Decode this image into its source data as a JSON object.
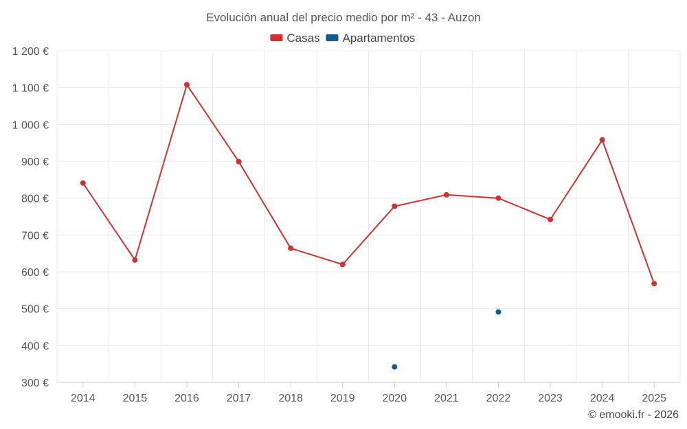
{
  "chart_data": {
    "type": "line",
    "title": "Evolución anual del precio medio por m² - 43 - Auzon",
    "categories": [
      "2014",
      "2015",
      "2016",
      "2017",
      "2018",
      "2019",
      "2020",
      "2021",
      "2022",
      "2023",
      "2024",
      "2025"
    ],
    "series": [
      {
        "name": "Casas",
        "color": "#d32f2f",
        "values": [
          841,
          632,
          1108,
          899,
          664,
          620,
          778,
          809,
          800,
          742,
          958,
          568
        ]
      },
      {
        "name": "Apartamentos",
        "color": "#0b5d94",
        "values": [
          null,
          null,
          null,
          null,
          null,
          null,
          342,
          null,
          491,
          null,
          null,
          null
        ]
      }
    ],
    "ylim": [
      300,
      1200
    ],
    "yticks": [
      300,
      400,
      500,
      600,
      700,
      800,
      900,
      1000,
      1100,
      1200
    ],
    "ytick_labels": [
      "300 €",
      "400 €",
      "500 €",
      "600 €",
      "700 €",
      "800 €",
      "900 €",
      "1 000 €",
      "1 100 €",
      "1 200 €"
    ],
    "grid": true,
    "legend_position": "top-center"
  },
  "credit": "© emooki.fr - 2026"
}
